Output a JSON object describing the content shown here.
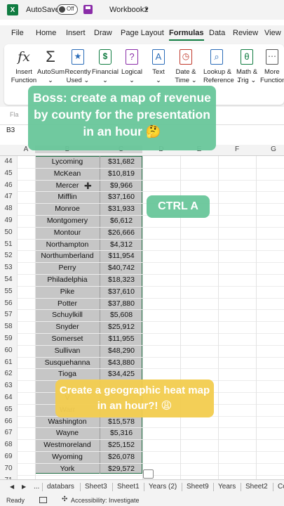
{
  "titlebar": {
    "app_glyph": "X",
    "autosave_label": "AutoSave",
    "toggle_label": "Off",
    "workbook_name": "Workbook2",
    "workbook_caret": "▾"
  },
  "tabs": [
    "File",
    "Home",
    "Insert",
    "Draw",
    "Page Layout",
    "Formulas",
    "Data",
    "Review",
    "View"
  ],
  "active_tab": "Formulas",
  "ribbon": [
    {
      "icon": "function-icon",
      "glyph": "fx",
      "label1": "Insert",
      "label2": "Function"
    },
    {
      "icon": "autosum-icon",
      "glyph": "Σ",
      "label1": "AutoSum",
      "label2": "⌄"
    },
    {
      "icon": "recently-used-icon",
      "glyph": "★",
      "label1": "Recently",
      "label2": "Used ⌄"
    },
    {
      "icon": "financial-icon",
      "glyph": "$",
      "label1": "Financial",
      "label2": "⌄"
    },
    {
      "icon": "logical-icon",
      "glyph": "?",
      "label1": "Logical",
      "label2": "⌄"
    },
    {
      "icon": "text-icon",
      "glyph": "A",
      "label1": "Text",
      "label2": "⌄"
    },
    {
      "icon": "date-time-icon",
      "glyph": "◷",
      "label1": "Date &",
      "label2": "Time ⌄"
    },
    {
      "icon": "lookup-icon",
      "glyph": "⌕",
      "label1": "Lookup &",
      "label2": "Reference ⌄"
    },
    {
      "icon": "math-trig-icon",
      "glyph": "θ",
      "label1": "Math &",
      "label2": "Trig ⌄"
    },
    {
      "icon": "more-functions-icon",
      "glyph": "⋯",
      "label1": "More",
      "label2": "Function"
    }
  ],
  "formula_bar": {
    "partial_label": "Fla"
  },
  "name_box": "B3",
  "columns": [
    "A",
    "B",
    "C",
    "D",
    "E",
    "F",
    "G"
  ],
  "rows": [
    {
      "n": "44",
      "county": "Lycoming",
      "revenue": "$31,682"
    },
    {
      "n": "45",
      "county": "McKean",
      "revenue": "$10,819"
    },
    {
      "n": "46",
      "county": "Mercer",
      "revenue": "$9,966"
    },
    {
      "n": "47",
      "county": "Mifflin",
      "revenue": "$37,160"
    },
    {
      "n": "48",
      "county": "Monroe",
      "revenue": "$31,933"
    },
    {
      "n": "49",
      "county": "Montgomery",
      "revenue": "$6,612"
    },
    {
      "n": "50",
      "county": "Montour",
      "revenue": "$26,666"
    },
    {
      "n": "51",
      "county": "Northampton",
      "revenue": "$4,312"
    },
    {
      "n": "52",
      "county": "Northumberland",
      "revenue": "$11,954"
    },
    {
      "n": "53",
      "county": "Perry",
      "revenue": "$40,742"
    },
    {
      "n": "54",
      "county": "Philadelphia",
      "revenue": "$18,323"
    },
    {
      "n": "55",
      "county": "Pike",
      "revenue": "$37,610"
    },
    {
      "n": "56",
      "county": "Potter",
      "revenue": "$37,880"
    },
    {
      "n": "57",
      "county": "Schuylkill",
      "revenue": "$5,608"
    },
    {
      "n": "58",
      "county": "Snyder",
      "revenue": "$25,912"
    },
    {
      "n": "59",
      "county": "Somerset",
      "revenue": "$11,955"
    },
    {
      "n": "60",
      "county": "Sullivan",
      "revenue": "$48,290"
    },
    {
      "n": "61",
      "county": "Susquehanna",
      "revenue": "$43,880"
    },
    {
      "n": "62",
      "county": "Tioga",
      "revenue": "$34,425"
    },
    {
      "n": "63",
      "county": "",
      "revenue": ""
    },
    {
      "n": "64",
      "county": "V",
      "revenue": ""
    },
    {
      "n": "65",
      "county": "Warr",
      "revenue": ""
    },
    {
      "n": "66",
      "county": "Washington",
      "revenue": "$15,578"
    },
    {
      "n": "67",
      "county": "Wayne",
      "revenue": "$5,316"
    },
    {
      "n": "68",
      "county": "Westmoreland",
      "revenue": "$25,152"
    },
    {
      "n": "69",
      "county": "Wyoming",
      "revenue": "$26,078"
    },
    {
      "n": "70",
      "county": "York",
      "revenue": "$29,572"
    },
    {
      "n": "71",
      "county": "",
      "revenue": ""
    }
  ],
  "sheet_tabs": [
    "databars",
    "Sheet3",
    "Sheet1",
    "Years (2)",
    "Sheet9",
    "Years",
    "Sheet2",
    "Co"
  ],
  "sheet_nav": {
    "prev": "◀",
    "next": "▶",
    "more": "..."
  },
  "status": {
    "ready": "Ready",
    "accessibility": "Accessibility: Investigate"
  },
  "captions": {
    "boss": "Boss: create a map of revenue by county for the presentation in an hour 🤔",
    "ctrl_a": "CTRL A",
    "heatmap": "Create a geographic heat map in an hour?! 😩"
  },
  "colors": {
    "accent": "#107c41",
    "caption_green": "#68c69a",
    "caption_yellow": "#f2cd50",
    "selection_fill": "#c6c6c6"
  }
}
